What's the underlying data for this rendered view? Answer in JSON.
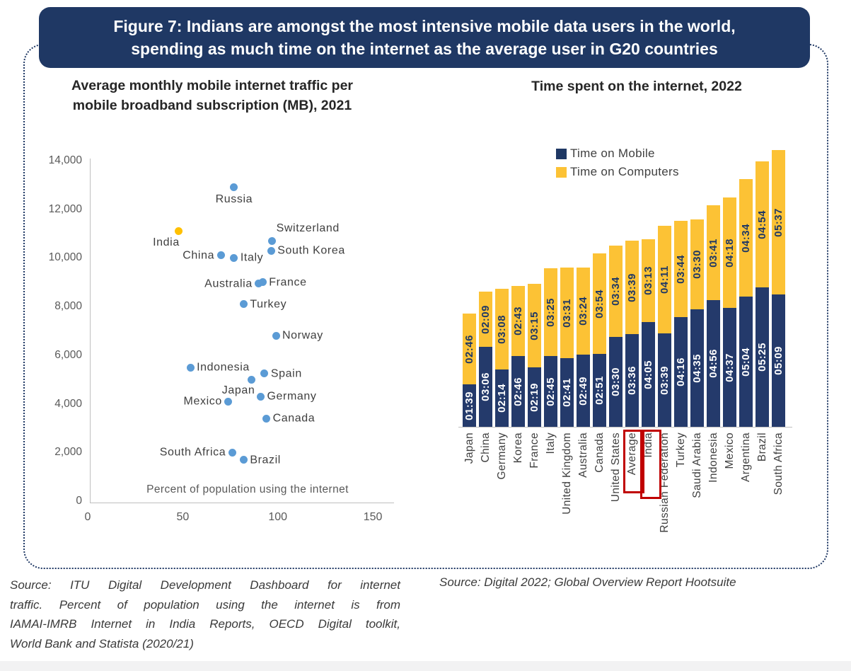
{
  "figure": {
    "title_line1": "Figure 7: Indians are amongst the most intensive mobile data users in the world,",
    "title_line2": "spending as much time on the internet as the average user in G20 countries"
  },
  "left_chart": {
    "title_line1": "Average monthly mobile internet traffic per",
    "title_line2": "mobile broadband subscription (MB), 2021"
  },
  "sources": {
    "left_lines": [
      "Source: ITU Digital Development Dashboard for internet",
      "traffic. Percent of population using the internet is from",
      "IAMAI-IMRB Internet in India Reports, OECD Digital toolkit,",
      "World Bank and Statista (2020/21)"
    ],
    "left_full": "Source: ITU Digital Development Dashboard for internet traffic. Percent of population using the internet is from IAMAI-IMRB Internet in India Reports, OECD Digital toolkit, World Bank and Statista (2020/21)",
    "right": "Source: Digital 2022; Global Overview Report Hootsuite"
  },
  "colors": {
    "banner_navy": "#1F3864",
    "bar_navy": "#243A6B",
    "bar_gold": "#FCC235",
    "scatter_blue": "#5B9BD5",
    "india_gold": "#FFC000",
    "highlight_red": "#C00000",
    "axis_gray": "#BFBFBF"
  },
  "chart_data": [
    {
      "type": "scatter",
      "title": "Average monthly mobile internet traffic per mobile broadband subscription (MB), 2021",
      "xlabel": "Percent of population using the internet",
      "ylabel": "",
      "xlim": [
        0,
        150
      ],
      "ylim": [
        0,
        14000
      ],
      "x_ticks": [
        "0",
        "50",
        "100",
        "150"
      ],
      "y_ticks": [
        "14,000",
        "12,000",
        "10,000",
        "8,000",
        "6,000",
        "4,000",
        "2,000",
        "0"
      ],
      "grid": false,
      "points": [
        {
          "label": "Russia",
          "x": 77,
          "y": 12900,
          "color": "#5B9BD5",
          "label_pos": "below"
        },
        {
          "label": "India",
          "x": 48,
          "y": 11100,
          "color": "#FFC000",
          "label_pos": "below-left"
        },
        {
          "label": "Switzerland",
          "x": 97,
          "y": 10700,
          "color": "#5B9BD5",
          "label_pos": "above-right"
        },
        {
          "label": "South Korea",
          "x": 96.5,
          "y": 10300,
          "color": "#5B9BD5",
          "label_pos": "right"
        },
        {
          "label": "China",
          "x": 70,
          "y": 10100,
          "color": "#5B9BD5",
          "label_pos": "left"
        },
        {
          "label": "Italy",
          "x": 77,
          "y": 10000,
          "color": "#5B9BD5",
          "label_pos": "right"
        },
        {
          "label": "France",
          "x": 92,
          "y": 9000,
          "color": "#5B9BD5",
          "label_pos": "right"
        },
        {
          "label": "Australia",
          "x": 90,
          "y": 8950,
          "color": "#5B9BD5",
          "label_pos": "left"
        },
        {
          "label": "Turkey",
          "x": 82,
          "y": 8100,
          "color": "#5B9BD5",
          "label_pos": "right"
        },
        {
          "label": "Norway",
          "x": 99,
          "y": 6800,
          "color": "#5B9BD5",
          "label_pos": "right"
        },
        {
          "label": "Indonesia",
          "x": 54,
          "y": 5500,
          "color": "#5B9BD5",
          "label_pos": "right"
        },
        {
          "label": "Spain",
          "x": 93,
          "y": 5250,
          "color": "#5B9BD5",
          "label_pos": "right"
        },
        {
          "label": "Japan",
          "x": 86,
          "y": 5000,
          "color": "#5B9BD5",
          "label_pos": "below-left"
        },
        {
          "label": "Germany",
          "x": 91,
          "y": 4300,
          "color": "#5B9BD5",
          "label_pos": "right"
        },
        {
          "label": "Mexico",
          "x": 74,
          "y": 4100,
          "color": "#5B9BD5",
          "label_pos": "left"
        },
        {
          "label": "Canada",
          "x": 94,
          "y": 3400,
          "color": "#5B9BD5",
          "label_pos": "right"
        },
        {
          "label": "South Africa",
          "x": 76,
          "y": 2000,
          "color": "#5B9BD5",
          "label_pos": "left"
        },
        {
          "label": "Brazil",
          "x": 82,
          "y": 1700,
          "color": "#5B9BD5",
          "label_pos": "right"
        }
      ]
    },
    {
      "type": "stacked-bar",
      "title": "Time spent on the internet, 2022",
      "categories": [
        "Japan",
        "China",
        "Germany",
        "Korea",
        "France",
        "Italy",
        "United Kingdom",
        "Australia",
        "Canada",
        "United States",
        "Average",
        "India",
        "Russian Federation",
        "Turkey",
        "Saudi Arabia",
        "Indonesia",
        "Mexico",
        "Argentina",
        "Brazil",
        "South Africa"
      ],
      "series": [
        {
          "name": "Time on Mobile",
          "color": "#243A6B",
          "values": [
            "01:39",
            "03:06",
            "02:14",
            "02:46",
            "02:19",
            "02:45",
            "02:41",
            "02:49",
            "02:51",
            "03:30",
            "03:36",
            "04:05",
            "03:39",
            "04:16",
            "04:35",
            "04:56",
            "04:37",
            "05:04",
            "05:25",
            "05:09"
          ]
        },
        {
          "name": "Time on Computers",
          "color": "#FCC235",
          "values": [
            "02:46",
            "02:09",
            "03:08",
            "02:43",
            "03:15",
            "03:25",
            "03:31",
            "03:24",
            "03:54",
            "03:34",
            "03:39",
            "03:13",
            "04:11",
            "03:44",
            "03:30",
            "03:41",
            "04:18",
            "04:34",
            "04:54",
            "05:37"
          ]
        }
      ],
      "value_label_format": "hh:mm rotated 90deg inside segments",
      "highlighted_categories": [
        "Average",
        "India"
      ],
      "legend_position": "upper-left-of-plot",
      "grid": false
    }
  ]
}
